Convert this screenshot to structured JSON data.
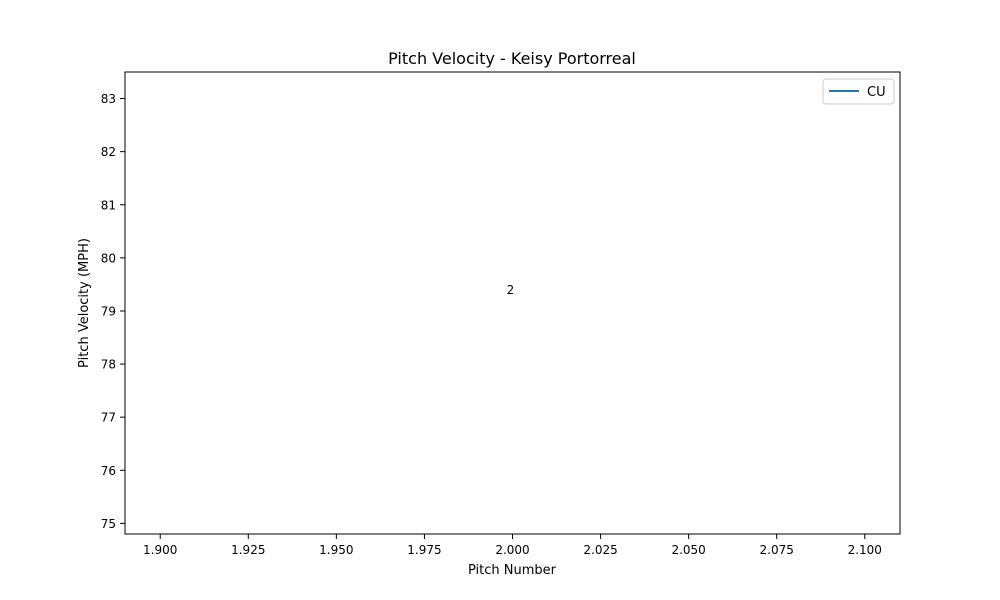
{
  "chart_data": {
    "type": "line",
    "title": "Pitch Velocity - Keisy Portorreal",
    "xlabel": "Pitch Number",
    "ylabel": "Pitch Velocity (MPH)",
    "xlim": [
      1.89,
      2.11
    ],
    "ylim": [
      74.8,
      83.5
    ],
    "xticks": [
      1.9,
      1.925,
      1.95,
      1.975,
      2.0,
      2.025,
      2.05,
      2.075,
      2.1
    ],
    "xtick_labels": [
      "1.900",
      "1.925",
      "1.950",
      "1.975",
      "2.000",
      "2.025",
      "2.050",
      "2.075",
      "2.100"
    ],
    "yticks": [
      75,
      76,
      77,
      78,
      79,
      80,
      81,
      82,
      83
    ],
    "grid": false,
    "legend": {
      "placement": "top-right",
      "entries": [
        {
          "label": "CU",
          "color": "#1f77b4"
        }
      ]
    },
    "series": [
      {
        "name": "CU",
        "color": "#1f77b4",
        "x": [
          2
        ],
        "y": [
          79.4
        ]
      }
    ],
    "annotations": [
      {
        "text": "2",
        "x": 2.0,
        "y": 79.4
      }
    ]
  }
}
